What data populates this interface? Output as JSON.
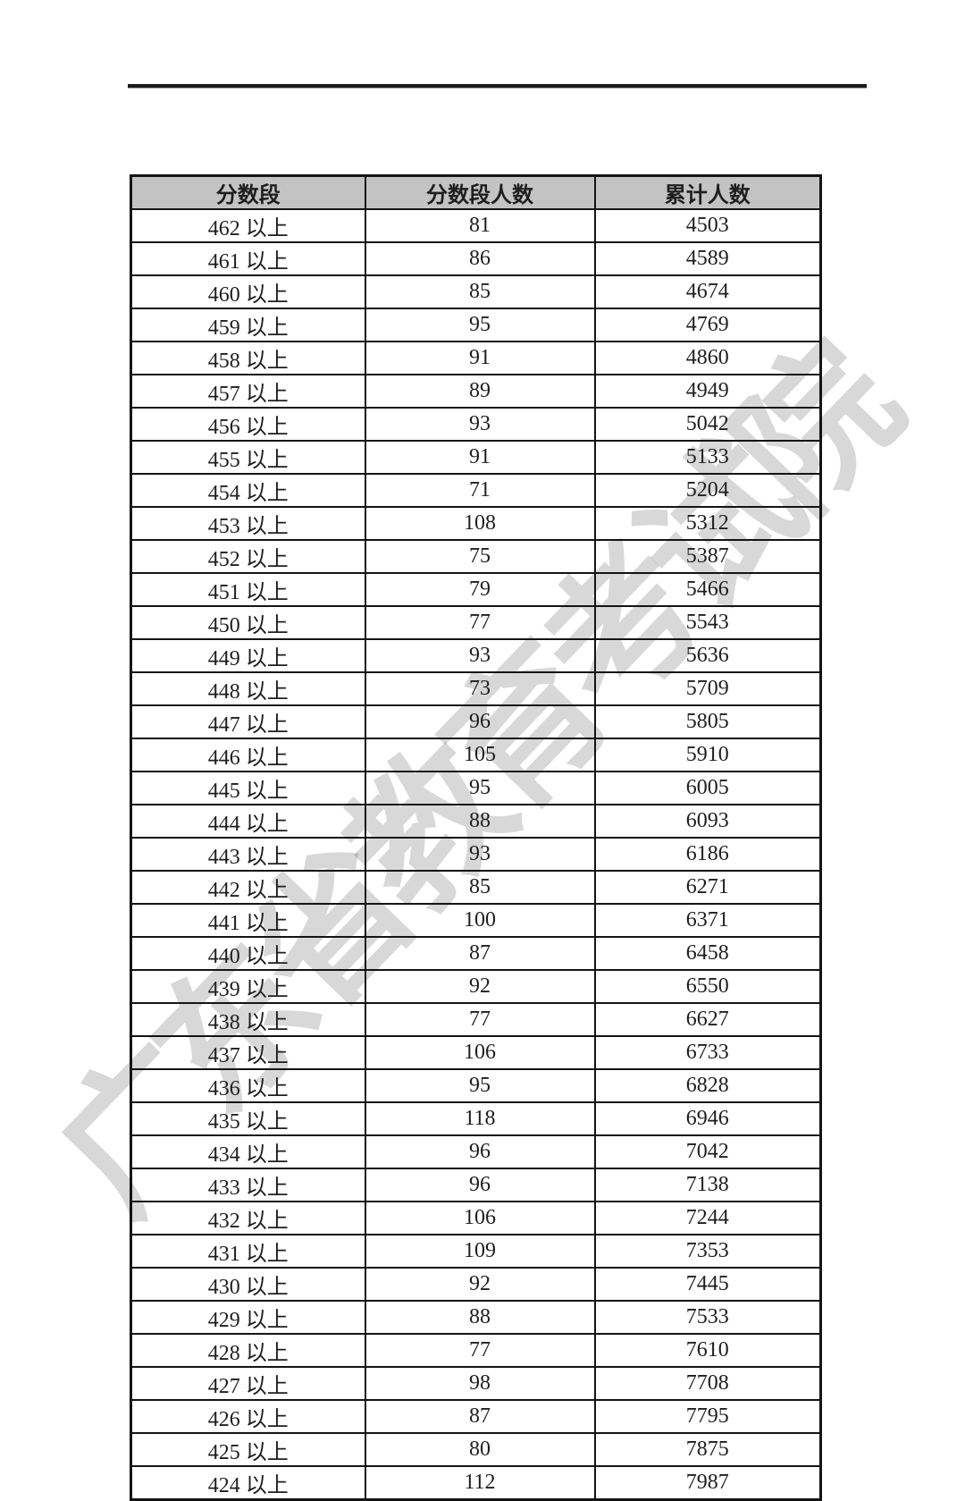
{
  "page": {
    "background": "#ffffff",
    "text_color": "#1e1e1e"
  },
  "top_rule": {
    "color": "#1b1b1b"
  },
  "watermark": {
    "text": "广东省教育考试院",
    "color": "rgba(40,40,40,0.18)"
  },
  "table": {
    "header_bg": "#c3c3c3",
    "border_color": "#141414",
    "headers": [
      "分数段",
      "分数段人数",
      "累计人数"
    ],
    "rows": [
      {
        "range": "462 以上",
        "count": "81",
        "cumulative": "4503"
      },
      {
        "range": "461 以上",
        "count": "86",
        "cumulative": "4589"
      },
      {
        "range": "460 以上",
        "count": "85",
        "cumulative": "4674"
      },
      {
        "range": "459 以上",
        "count": "95",
        "cumulative": "4769"
      },
      {
        "range": "458 以上",
        "count": "91",
        "cumulative": "4860"
      },
      {
        "range": "457 以上",
        "count": "89",
        "cumulative": "4949"
      },
      {
        "range": "456 以上",
        "count": "93",
        "cumulative": "5042"
      },
      {
        "range": "455 以上",
        "count": "91",
        "cumulative": "5133"
      },
      {
        "range": "454 以上",
        "count": "71",
        "cumulative": "5204"
      },
      {
        "range": "453 以上",
        "count": "108",
        "cumulative": "5312"
      },
      {
        "range": "452 以上",
        "count": "75",
        "cumulative": "5387"
      },
      {
        "range": "451 以上",
        "count": "79",
        "cumulative": "5466"
      },
      {
        "range": "450 以上",
        "count": "77",
        "cumulative": "5543"
      },
      {
        "range": "449 以上",
        "count": "93",
        "cumulative": "5636"
      },
      {
        "range": "448 以上",
        "count": "73",
        "cumulative": "5709"
      },
      {
        "range": "447 以上",
        "count": "96",
        "cumulative": "5805"
      },
      {
        "range": "446 以上",
        "count": "105",
        "cumulative": "5910"
      },
      {
        "range": "445 以上",
        "count": "95",
        "cumulative": "6005"
      },
      {
        "range": "444 以上",
        "count": "88",
        "cumulative": "6093"
      },
      {
        "range": "443 以上",
        "count": "93",
        "cumulative": "6186"
      },
      {
        "range": "442 以上",
        "count": "85",
        "cumulative": "6271"
      },
      {
        "range": "441 以上",
        "count": "100",
        "cumulative": "6371"
      },
      {
        "range": "440 以上",
        "count": "87",
        "cumulative": "6458"
      },
      {
        "range": "439 以上",
        "count": "92",
        "cumulative": "6550"
      },
      {
        "range": "438 以上",
        "count": "77",
        "cumulative": "6627"
      },
      {
        "range": "437 以上",
        "count": "106",
        "cumulative": "6733"
      },
      {
        "range": "436 以上",
        "count": "95",
        "cumulative": "6828"
      },
      {
        "range": "435 以上",
        "count": "118",
        "cumulative": "6946"
      },
      {
        "range": "434 以上",
        "count": "96",
        "cumulative": "7042"
      },
      {
        "range": "433 以上",
        "count": "96",
        "cumulative": "7138"
      },
      {
        "range": "432 以上",
        "count": "106",
        "cumulative": "7244"
      },
      {
        "range": "431 以上",
        "count": "109",
        "cumulative": "7353"
      },
      {
        "range": "430 以上",
        "count": "92",
        "cumulative": "7445"
      },
      {
        "range": "429 以上",
        "count": "88",
        "cumulative": "7533"
      },
      {
        "range": "428 以上",
        "count": "77",
        "cumulative": "7610"
      },
      {
        "range": "427 以上",
        "count": "98",
        "cumulative": "7708"
      },
      {
        "range": "426 以上",
        "count": "87",
        "cumulative": "7795"
      },
      {
        "range": "425 以上",
        "count": "80",
        "cumulative": "7875"
      },
      {
        "range": "424 以上",
        "count": "112",
        "cumulative": "7987"
      }
    ]
  }
}
